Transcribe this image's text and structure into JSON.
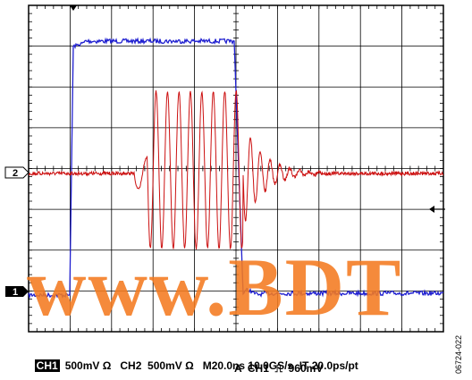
{
  "screen": {
    "grid_divisions_x": 10,
    "grid_divisions_y": 8,
    "grid_color": "#000000",
    "ch1_color": "#1f1fd0",
    "ch2_color": "#cc1111"
  },
  "markers": {
    "ch2_label": "2",
    "ch1_label": "1"
  },
  "readout": {
    "ch1_badge": "CH1",
    "ch1_scale": "500mV Ω",
    "ch2_scale": "CH2  500mV Ω",
    "timebase": "M20.0ns 10.0GS/s  IT 20.0ps/pt",
    "trigger": "A  CH1  ⎍  960mV"
  },
  "figure_id": "06724-022",
  "watermark": "www.BDT"
}
